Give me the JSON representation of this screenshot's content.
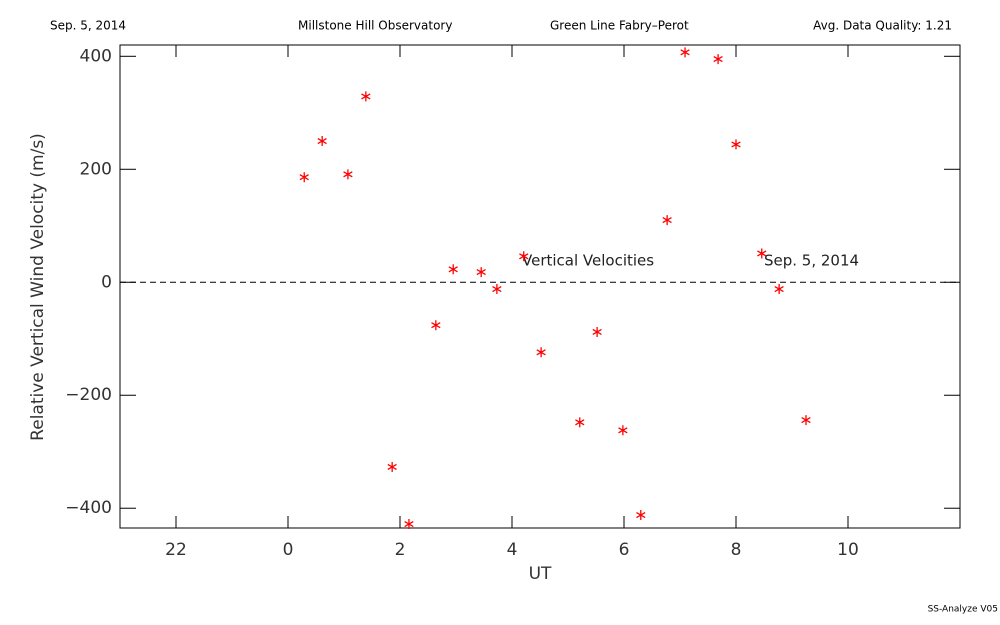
{
  "chart_data": {
    "type": "scatter",
    "header": [
      "Sep. 5, 2014",
      "Millstone Hill Observatory",
      "Green Line Fabry–Perot",
      "Avg. Data Quality: 1.21"
    ],
    "xlabel": "UT",
    "ylabel": "Relative Vertical Wind Velocity (m/s)",
    "annotations": [
      "Vertical Velocities",
      "Sep. 5, 2014"
    ],
    "footer": "SS-Analyze V05",
    "xlim": [
      -3,
      12
    ],
    "xticks": [
      {
        "value": -2,
        "label": "22"
      },
      0,
      2,
      4,
      6,
      8,
      10
    ],
    "ylim": [
      -435,
      420
    ],
    "yticks": [
      {
        "value": -400,
        "label": "−400"
      },
      {
        "value": -200,
        "label": "−200"
      },
      0,
      200,
      400
    ],
    "reference_line": 0,
    "series": [
      {
        "color": "#ff0000",
        "x": [
          0.29,
          0.61,
          1.07,
          1.39,
          1.86,
          2.16,
          2.64,
          2.95,
          3.45,
          3.73,
          4.21,
          4.52,
          5.21,
          5.52,
          5.98,
          6.3,
          6.77,
          7.09,
          7.68,
          8.0,
          8.46,
          8.77,
          9.25
        ],
        "values": [
          186,
          250,
          191,
          329,
          -327,
          -428,
          -76,
          23,
          18,
          -12,
          46,
          -124,
          -248,
          -88,
          -262,
          -412,
          110,
          407,
          395,
          244,
          51,
          -12,
          -244
        ]
      }
    ]
  }
}
